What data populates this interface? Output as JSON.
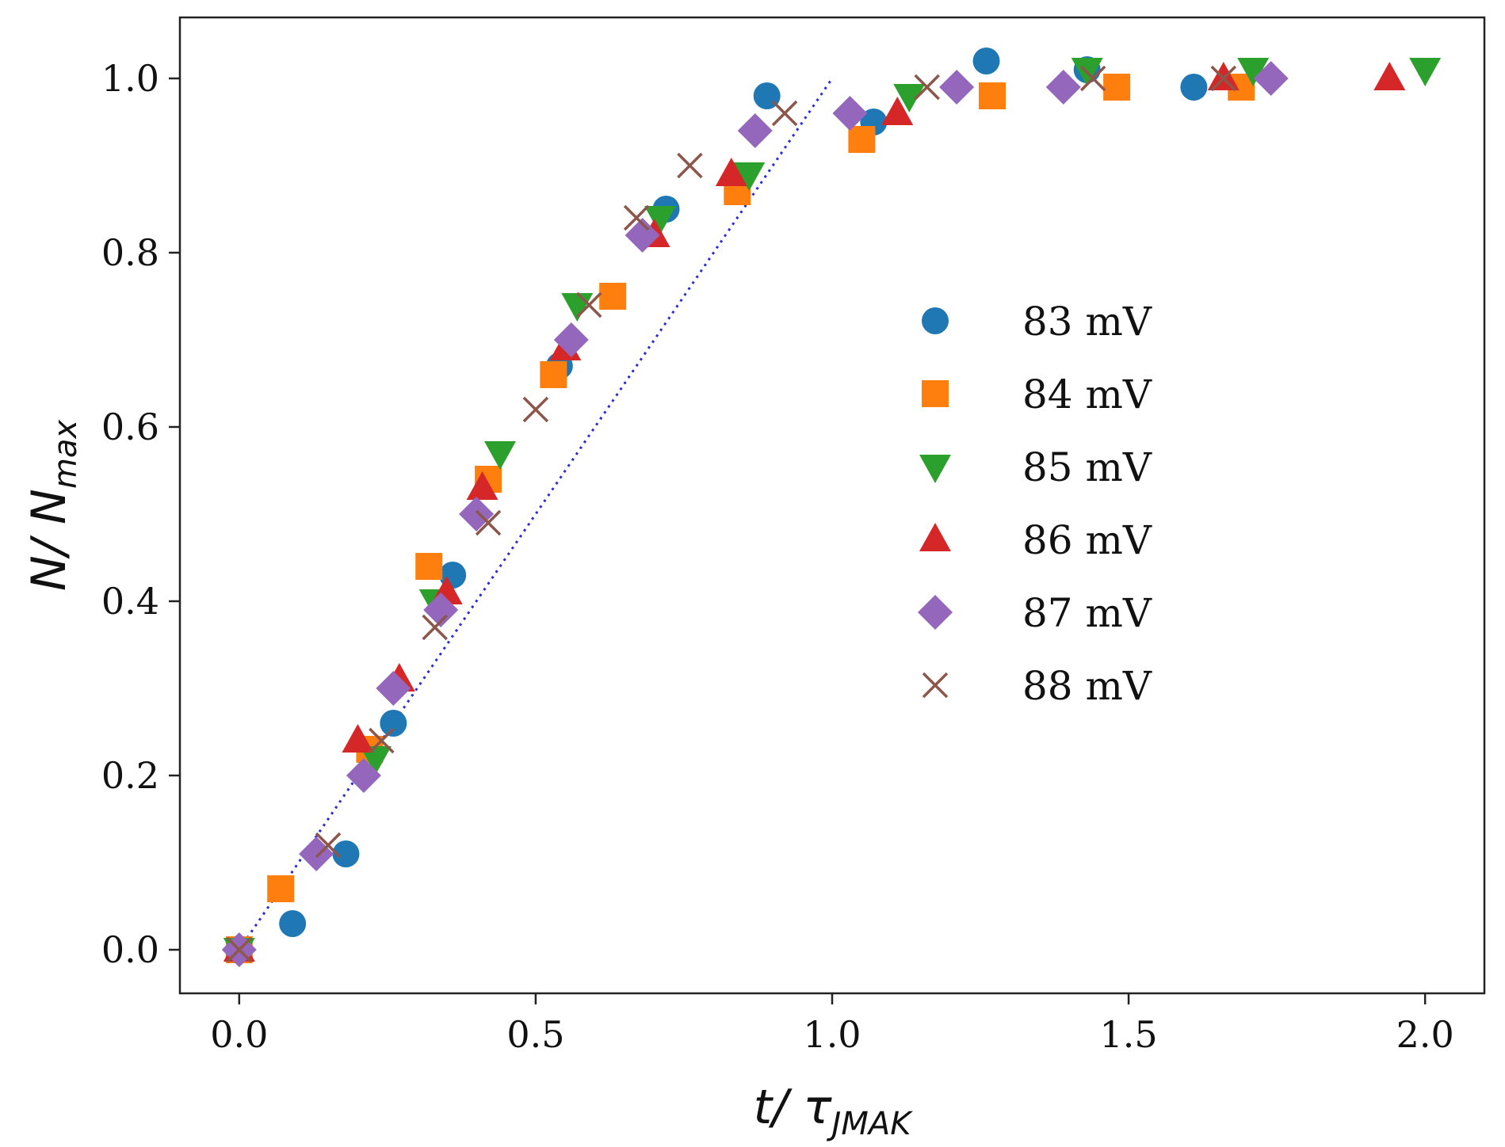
{
  "chart_data": {
    "type": "scatter",
    "xlabel": "t/ τ",
    "xlabel_sub": "JMAK",
    "ylabel": "N/ N",
    "ylabel_sub": "max",
    "xlim": [
      -0.1,
      2.1
    ],
    "ylim": [
      -0.05,
      1.07
    ],
    "x_ticks": [
      0.0,
      0.5,
      1.0,
      1.5,
      2.0
    ],
    "x_tick_labels": [
      "0.0",
      "0.5",
      "1.0",
      "1.5",
      "2.0"
    ],
    "y_ticks": [
      0.0,
      0.2,
      0.4,
      0.6,
      0.8,
      1.0
    ],
    "y_tick_labels": [
      "0.0",
      "0.2",
      "0.4",
      "0.6",
      "0.8",
      "1.0"
    ],
    "grid": false,
    "legend_placement": "center-right",
    "reference_line": {
      "style": "dotted",
      "color": "#2a2ad8",
      "x": [
        0,
        1.0
      ],
      "y": [
        0,
        1.0
      ]
    },
    "series": [
      {
        "name": "83 mV",
        "marker": "circle",
        "color": "#1f77b4",
        "x": [
          0,
          0.09,
          0.18,
          0.26,
          0.36,
          0.54,
          0.72,
          0.89,
          1.07,
          1.26,
          1.43,
          1.61
        ],
        "y": [
          0,
          0.03,
          0.11,
          0.26,
          0.43,
          0.67,
          0.85,
          0.98,
          0.95,
          1.02,
          1.01,
          0.99
        ]
      },
      {
        "name": "84 mV",
        "marker": "square",
        "color": "#ff7f0e",
        "x": [
          0,
          0.07,
          0.22,
          0.32,
          0.42,
          0.53,
          0.63,
          0.84,
          1.05,
          1.27,
          1.48,
          1.69
        ],
        "y": [
          0,
          0.07,
          0.23,
          0.44,
          0.54,
          0.66,
          0.75,
          0.87,
          0.93,
          0.98,
          0.99,
          0.99
        ]
      },
      {
        "name": "85 mV",
        "marker": "triangle-down",
        "color": "#2ca02c",
        "x": [
          0,
          0.23,
          0.33,
          0.44,
          0.57,
          0.71,
          0.86,
          1.13,
          1.43,
          1.71,
          2.0
        ],
        "y": [
          0,
          0.22,
          0.4,
          0.57,
          0.74,
          0.84,
          0.89,
          0.98,
          1.01,
          1.01,
          1.01
        ]
      },
      {
        "name": "86 mV",
        "marker": "triangle-up",
        "color": "#d62728",
        "x": [
          0,
          0.2,
          0.27,
          0.35,
          0.41,
          0.55,
          0.7,
          0.83,
          1.11,
          1.66,
          1.94
        ],
        "y": [
          0,
          0.24,
          0.31,
          0.41,
          0.53,
          0.69,
          0.82,
          0.89,
          0.96,
          1.0,
          1.0
        ]
      },
      {
        "name": "87 mV",
        "marker": "diamond",
        "color": "#9467bd",
        "x": [
          0,
          0.13,
          0.21,
          0.26,
          0.34,
          0.4,
          0.56,
          0.68,
          0.87,
          1.03,
          1.21,
          1.39,
          1.74
        ],
        "y": [
          0,
          0.11,
          0.2,
          0.3,
          0.39,
          0.5,
          0.7,
          0.82,
          0.94,
          0.96,
          0.99,
          0.99,
          1.0
        ]
      },
      {
        "name": "88 mV",
        "marker": "x",
        "color": "#8c564b",
        "x": [
          0,
          0.15,
          0.24,
          0.33,
          0.42,
          0.5,
          0.59,
          0.67,
          0.76,
          0.92,
          1.16,
          1.44,
          1.66
        ],
        "y": [
          0,
          0.12,
          0.24,
          0.37,
          0.49,
          0.62,
          0.74,
          0.84,
          0.9,
          0.96,
          0.99,
          1.0,
          1.0
        ]
      }
    ]
  }
}
